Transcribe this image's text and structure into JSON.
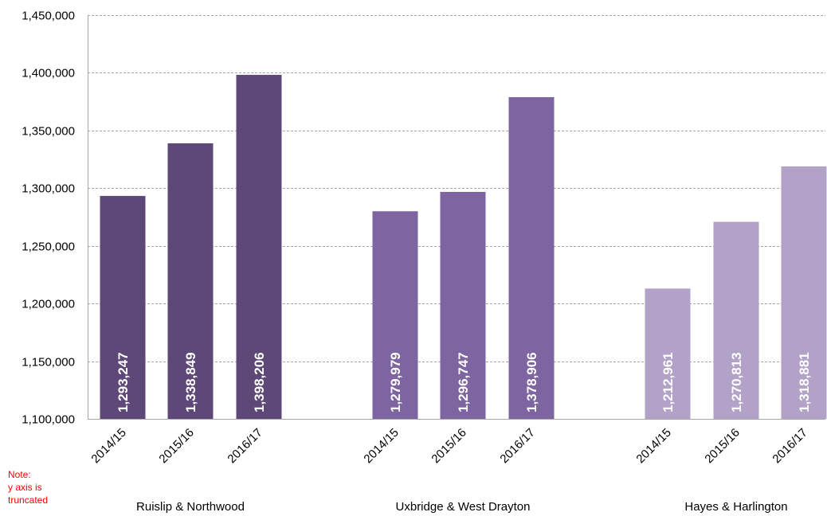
{
  "chart_data": {
    "type": "bar",
    "title": "",
    "xlabel": "",
    "ylabel": "",
    "ylim": [
      1100000,
      1450000
    ],
    "yticks": [
      1100000,
      1150000,
      1200000,
      1250000,
      1300000,
      1350000,
      1400000,
      1450000
    ],
    "ytick_labels": [
      "1,100,000",
      "1,150,000",
      "1,200,000",
      "1,250,000",
      "1,300,000",
      "1,350,000",
      "1,400,000",
      "1,450,000"
    ],
    "grid": true,
    "groups": [
      {
        "name": "Ruislip & Northwood",
        "color": "#5E4878",
        "categories": [
          "2014/15",
          "2015/16",
          "2016/17"
        ],
        "values": [
          1293247,
          1338849,
          1398206
        ],
        "value_labels": [
          "1,293,247",
          "1,338,849",
          "1,398,206"
        ]
      },
      {
        "name": "Uxbridge & West Drayton",
        "color": "#7E64A0",
        "categories": [
          "2014/15",
          "2015/16",
          "2016/17"
        ],
        "values": [
          1279979,
          1296747,
          1378906
        ],
        "value_labels": [
          "1,279,979",
          "1,296,747",
          "1,378,906"
        ]
      },
      {
        "name": "Hayes & Harlington",
        "color": "#B3A2C7",
        "categories": [
          "2014/15",
          "2015/16",
          "2016/17"
        ],
        "values": [
          1212961,
          1270813,
          1318881
        ],
        "value_labels": [
          "1,212,961",
          "1,270,813",
          "1,318,881"
        ]
      }
    ]
  },
  "note": {
    "lines": [
      "Note:",
      "y axis is",
      "truncated"
    ],
    "color": "#FF0000"
  }
}
